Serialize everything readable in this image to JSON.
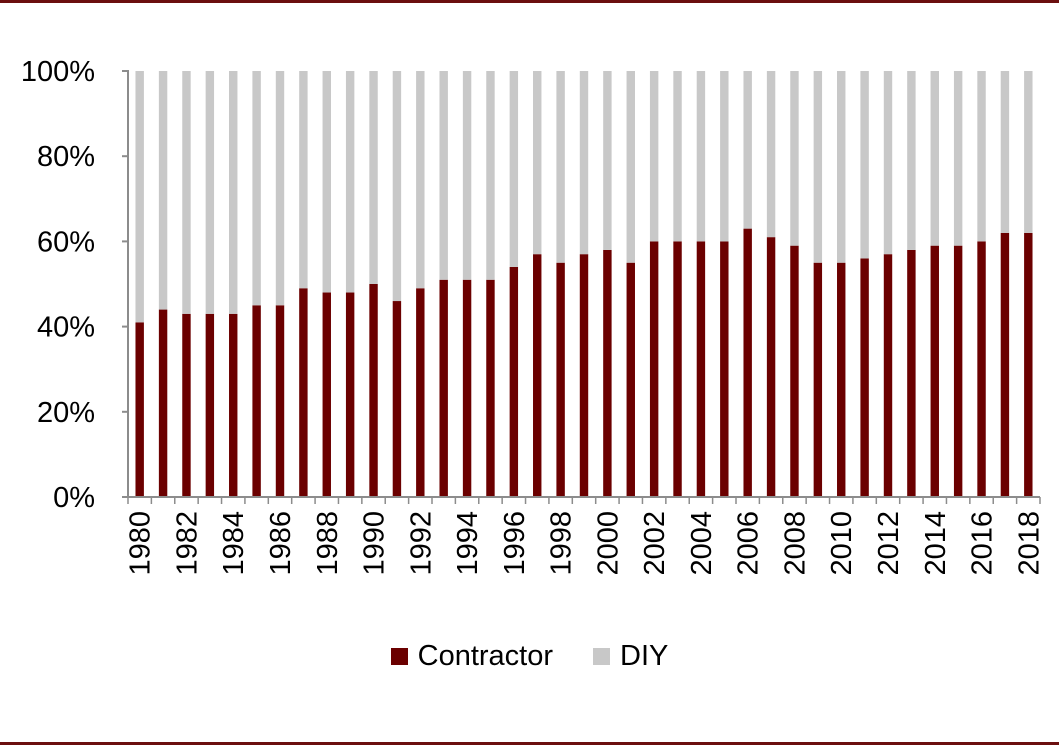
{
  "chart_data": {
    "type": "bar",
    "stacked": true,
    "categories": [
      "1980",
      "1981",
      "1982",
      "1983",
      "1984",
      "1985",
      "1986",
      "1987",
      "1988",
      "1989",
      "1990",
      "1991",
      "1992",
      "1993",
      "1994",
      "1995",
      "1996",
      "1997",
      "1998",
      "1999",
      "2000",
      "2001",
      "2002",
      "2003",
      "2004",
      "2005",
      "2006",
      "2007",
      "2008",
      "2009",
      "2010",
      "2011",
      "2012",
      "2013",
      "2014",
      "2015",
      "2016",
      "2017",
      "2018"
    ],
    "xtick_labels": [
      "1980",
      "1982",
      "1984",
      "1986",
      "1988",
      "1990",
      "1992",
      "1994",
      "1996",
      "1998",
      "2000",
      "2002",
      "2004",
      "2006",
      "2008",
      "2010",
      "2012",
      "2014",
      "2016",
      "2018"
    ],
    "series": [
      {
        "name": "Contractor",
        "color": "#6b0000",
        "values": [
          41,
          44,
          43,
          43,
          43,
          45,
          45,
          49,
          48,
          48,
          50,
          46,
          49,
          51,
          51,
          51,
          54,
          57,
          55,
          57,
          58,
          55,
          60,
          60,
          60,
          60,
          63,
          61,
          59,
          55,
          55,
          56,
          57,
          58,
          59,
          59,
          60,
          62,
          62
        ]
      },
      {
        "name": "DIY",
        "color": "#c8c8c8",
        "values": [
          59,
          56,
          57,
          57,
          57,
          55,
          55,
          51,
          52,
          52,
          50,
          54,
          51,
          49,
          49,
          49,
          46,
          43,
          45,
          43,
          42,
          45,
          40,
          40,
          40,
          40,
          37,
          39,
          41,
          45,
          45,
          44,
          43,
          42,
          41,
          41,
          40,
          38,
          38
        ]
      }
    ],
    "ytick_labels": [
      "0%",
      "20%",
      "40%",
      "60%",
      "80%",
      "100%"
    ],
    "ylim": [
      0,
      100
    ],
    "title": "",
    "xlabel": "",
    "ylabel": "",
    "legend_position": "bottom"
  },
  "legend": {
    "items": [
      {
        "label": "Contractor",
        "color": "#6b0000"
      },
      {
        "label": "DIY",
        "color": "#c8c8c8"
      }
    ]
  },
  "accent_color": "#6b0f0f"
}
